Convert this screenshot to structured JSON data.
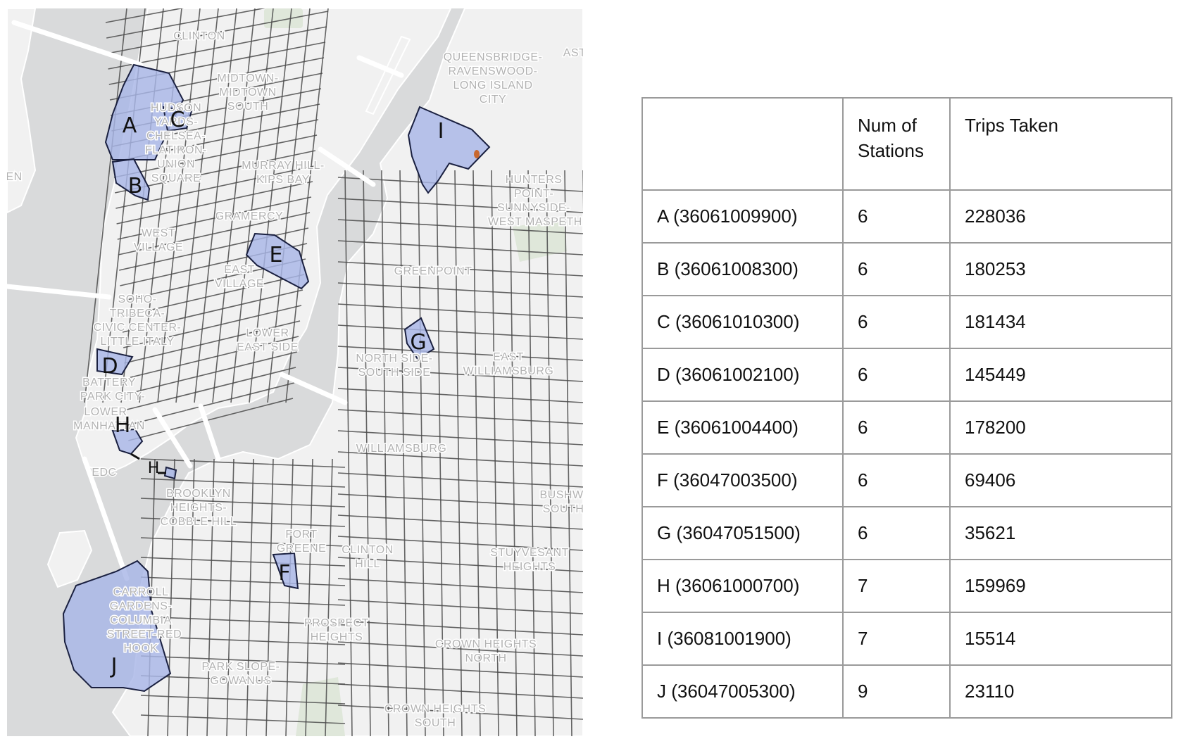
{
  "map": {
    "neighborhoods": [
      "CLINTON",
      "MIDTOWN-",
      "MIDTOWN",
      "SOUTH",
      "HUDSON",
      "YARDS-",
      "CHELSEA-",
      "FLATIRON-",
      "UNION",
      "SQUARE",
      "MURRAY HILL-",
      "KIPS BAY",
      "GRAMERCY",
      "WEST",
      "VILLAGE",
      "EAST",
      "VILLAGE",
      "SOHO-",
      "TRIBECA-",
      "CIVIC CENTER-",
      "LITTLE ITALY",
      "LOWER",
      "EAST SIDE",
      "BATTERY",
      "PARK CITY-",
      "LOWER",
      "MANHATTAN",
      "QUEENSBRIDGE-",
      "RAVENSWOOD-",
      "LONG ISLAND",
      "CITY",
      "AST",
      "HUNTERS",
      "POINT-",
      "SUNNYSIDE-",
      "WEST MASPETH",
      "GREENPOINT",
      "NORTH SIDE-",
      "SOUTH SIDE",
      "EAST",
      "WILLIAMSBURG",
      "WILLIAMSBURG",
      "BROOKLYN",
      "HEIGHTS-",
      "COBBLE HILL",
      "FORT",
      "GREENE",
      "CLINTON",
      "HILL",
      "BUSHWI",
      "SOUTH",
      "STUYVESANT",
      "HEIGHTS",
      "CARROLL",
      "GARDENS-",
      "COLUMBIA",
      "STREET-RED",
      "HOOK",
      "PROSPECT",
      "HEIGHTS",
      "CROWN HEIGHTS",
      "NORTH",
      "PARK SLOPE-",
      "GOWANUS",
      "CROWN HEIGHTS",
      "SOUTH",
      "EN",
      "EDC"
    ],
    "tract_letters": [
      "A",
      "B",
      "C",
      "D",
      "E",
      "F",
      "G",
      "H",
      "H",
      "I",
      "J"
    ],
    "colors": {
      "water": "#d9dadb",
      "land": "#f1f1f1",
      "tract_fill": "#a8b6e6",
      "tract_outline": "#1a2040",
      "label": "#b2b2b2",
      "station_marker": "#c8682e"
    }
  },
  "table": {
    "headers": [
      "",
      "Num of Stations",
      "Trips Taken"
    ],
    "rows": [
      {
        "tract": "A (36061009900)",
        "stations": "6",
        "trips": "228036"
      },
      {
        "tract": "B (36061008300)",
        "stations": "6",
        "trips": "180253"
      },
      {
        "tract": "C (36061010300)",
        "stations": "6",
        "trips": "181434"
      },
      {
        "tract": "D (36061002100)",
        "stations": "6",
        "trips": "145449"
      },
      {
        "tract": "E (36061004400)",
        "stations": "6",
        "trips": "178200"
      },
      {
        "tract": "F (36047003500)",
        "stations": "6",
        "trips": "69406"
      },
      {
        "tract": "G (36047051500)",
        "stations": "6",
        "trips": "35621"
      },
      {
        "tract": "H (36061000700)",
        "stations": "7",
        "trips": "159969"
      },
      {
        "tract": "I (36081001900)",
        "stations": "7",
        "trips": "15514"
      },
      {
        "tract": "J (36047005300)",
        "stations": "9",
        "trips": "23110"
      }
    ]
  }
}
